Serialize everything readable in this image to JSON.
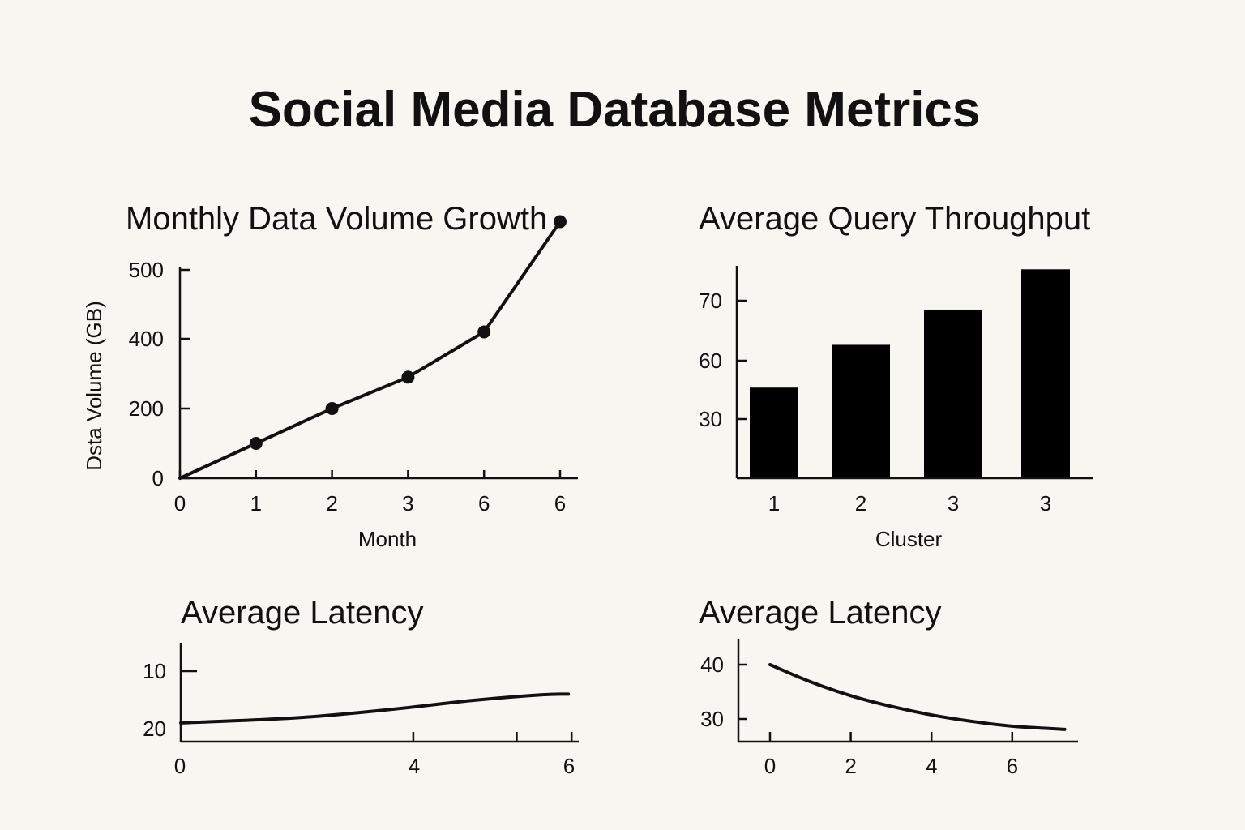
{
  "title": "Social Media Database Metrics",
  "chart_data": [
    {
      "id": "volume",
      "type": "line",
      "title": "Monthly Data Volume Growth",
      "xlabel": "Month",
      "ylabel": "Dsta Volume (GB)",
      "x_ticks": [
        "0",
        "1",
        "2",
        "3",
        "6",
        "6"
      ],
      "y_ticks": [
        "0",
        "200",
        "400",
        "500"
      ],
      "series": [
        {
          "markers": true,
          "points": [
            [
              0,
              0
            ],
            [
              1,
              100
            ],
            [
              2,
              200
            ],
            [
              3,
              290
            ],
            [
              4,
              410
            ],
            [
              5,
              570
            ]
          ]
        }
      ],
      "grid": false
    },
    {
      "id": "throughput",
      "type": "bar",
      "title": "Average Query Throughput",
      "xlabel": "Cluster",
      "ylabel": "",
      "categories": [
        "1",
        "2",
        "3",
        "3"
      ],
      "values": [
        36,
        53,
        67,
        83
      ],
      "y_ticks": [
        "30",
        "60",
        "70"
      ],
      "grid": false
    },
    {
      "id": "latency-left",
      "type": "line",
      "title": "Average Latency",
      "xlabel": "",
      "ylabel": "",
      "x_ticks": [
        "0",
        "4",
        "6"
      ],
      "y_ticks": [
        "10",
        "20"
      ],
      "series": [
        {
          "markers": false,
          "points": [
            [
              0,
              19
            ],
            [
              1.8,
              18.1
            ],
            [
              3.3,
              16.6
            ],
            [
              4.5,
              15.1
            ],
            [
              5.6,
              14.1
            ],
            [
              6,
              14.0
            ]
          ]
        }
      ],
      "grid": false
    },
    {
      "id": "latency-right",
      "type": "line",
      "title": "Average Latency",
      "xlabel": "",
      "ylabel": "",
      "x_ticks": [
        "0",
        "2",
        "4",
        "6"
      ],
      "y_ticks": [
        "40",
        "30"
      ],
      "series": [
        {
          "markers": false,
          "points": [
            [
              0,
              40
            ],
            [
              1,
              36.8
            ],
            [
              2,
              34.2
            ],
            [
              3,
              32.2
            ],
            [
              4,
              30.6
            ],
            [
              5,
              29.4
            ],
            [
              6,
              28.5
            ],
            [
              7.3,
              27.9
            ]
          ]
        }
      ],
      "grid": false
    }
  ]
}
